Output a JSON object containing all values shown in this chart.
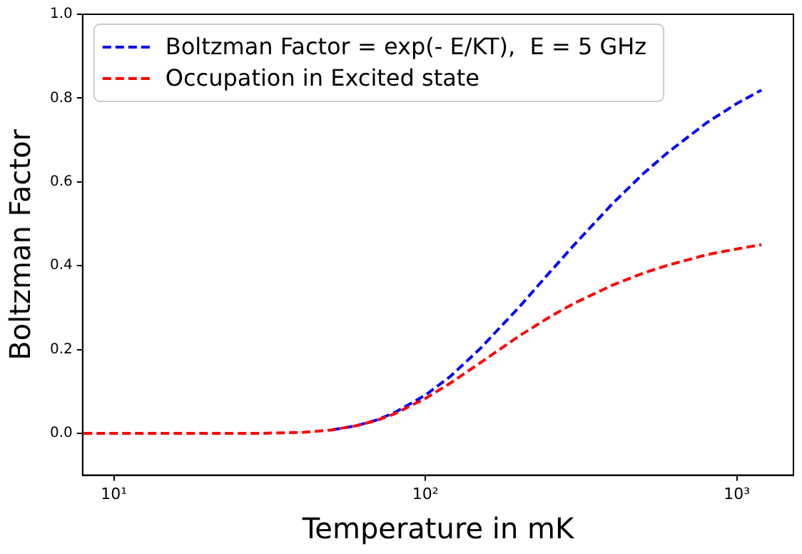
{
  "chart_data": {
    "type": "line",
    "xlabel": "Temperature in mK",
    "ylabel": "Boltzman Factor",
    "log": "x",
    "x": [
      8,
      10,
      15,
      20,
      30,
      40,
      50,
      60,
      70,
      80,
      100,
      120,
      150,
      200,
      250,
      300,
      400,
      500,
      600,
      800,
      1000,
      1200
    ],
    "series": [
      {
        "name": "Boltzman Factor = exp(- E/KT),  E = 5 GHz",
        "color": "#0000ff",
        "values": [
          null,
          null,
          null,
          null,
          null,
          null,
          0.008,
          0.018,
          0.032,
          0.05,
          0.091,
          0.135,
          0.202,
          0.301,
          0.383,
          0.449,
          0.549,
          0.619,
          0.67,
          0.741,
          0.787,
          0.819
        ]
      },
      {
        "name": "Occupation in Excited state",
        "color": "#ff0000",
        "values": [
          0,
          0,
          0,
          0,
          0,
          0.002,
          0.008,
          0.018,
          0.031,
          0.047,
          0.083,
          0.119,
          0.168,
          0.232,
          0.277,
          0.31,
          0.354,
          0.382,
          0.401,
          0.426,
          0.44,
          0.45
        ]
      }
    ],
    "xlim": [
      7.94,
      1520
    ],
    "xticks": [
      {
        "value": 10,
        "label": "10¹"
      },
      {
        "value": 100,
        "label": "10²"
      },
      {
        "value": 1000,
        "label": "10³"
      }
    ],
    "ylim": [
      -0.1,
      1.0
    ],
    "yticks": [
      {
        "value": 0,
        "label": "0.0"
      },
      {
        "value": 0.2,
        "label": "0.2"
      },
      {
        "value": 0.4,
        "label": "0.4"
      },
      {
        "value": 0.6,
        "label": "0.6"
      },
      {
        "value": 0.8,
        "label": "0.8"
      },
      {
        "value": 1.0,
        "label": "1.0"
      }
    ],
    "grid": false,
    "legend": "top left",
    "marker": "none",
    "line_style": "dashed"
  }
}
